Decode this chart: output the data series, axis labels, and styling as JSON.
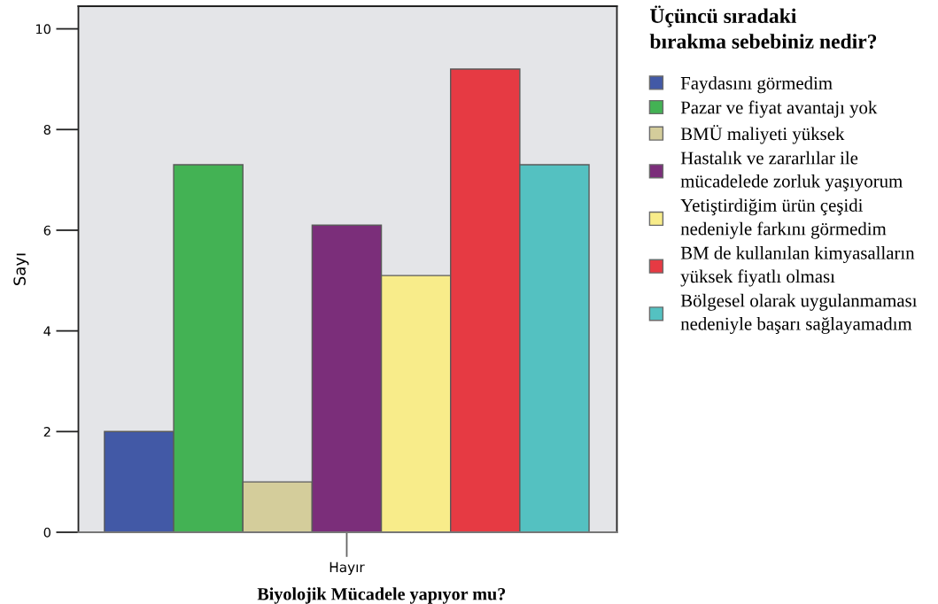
{
  "chart_data": {
    "type": "bar",
    "xlabel": "Biyolojik Mücadele yapıyor mu?",
    "ylabel": "Sayı",
    "legend_title": "Üçüncü sıradaki\nbırakma sebebiniz nedir?",
    "categories": [
      "Hayır"
    ],
    "series": [
      {
        "name": "Faydasını görmedim",
        "color": "#4259a6",
        "values": [
          2.0
        ]
      },
      {
        "name": "Pazar ve fiyat avantajı yok",
        "color": "#43b254",
        "values": [
          7.3
        ]
      },
      {
        "name": "BMÜ maliyeti yüksek",
        "color": "#d4cd9b",
        "values": [
          1.0
        ]
      },
      {
        "name": "Hastalık ve zararlılar ile\nmücadelede zorluk yaşıyorum",
        "color": "#7b2e7a",
        "values": [
          6.1
        ]
      },
      {
        "name": "Yetiştirdiğim ürün çeşidi\nnedeniyle farkını görmedim",
        "color": "#f8ec8a",
        "values": [
          5.1
        ]
      },
      {
        "name": "BM de kullanılan kimyasalların\nyüksek fiyatlı olması",
        "color": "#e63a43",
        "values": [
          9.2
        ]
      },
      {
        "name": "Bölgesel olarak uygulanmaması\nnedeniyle başarı sağlayamadım",
        "color": "#54c1c1",
        "values": [
          7.3
        ]
      }
    ],
    "ylim": [
      0,
      10.45
    ],
    "yticks": [
      0,
      2,
      4,
      6,
      8,
      10
    ],
    "legend": "right"
  }
}
